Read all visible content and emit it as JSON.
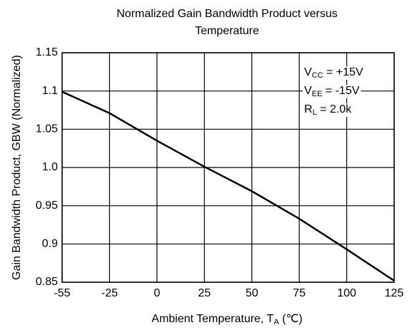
{
  "chart_data": {
    "type": "line",
    "title": [
      "Normalized Gain Bandwidth Product versus",
      "Temperature"
    ],
    "x_label": {
      "main": "Ambient Temperature, T",
      "sub": "A",
      "tail": " (℃)"
    },
    "y_label": "Gain Bandwidth Product, GBW (Normalized)",
    "x": [
      -55,
      -25,
      0,
      25,
      50,
      75,
      100,
      125
    ],
    "series": [
      {
        "color": "#000000",
        "values": [
          1.099,
          1.071,
          1.035,
          1.001,
          0.969,
          0.933,
          0.893,
          0.852
        ]
      }
    ],
    "xlim": [
      -55,
      125
    ],
    "xticks": [
      -55,
      -25,
      0,
      25,
      50,
      75,
      100,
      125
    ],
    "ylim": [
      0.85,
      1.15
    ],
    "yticks": [
      1.15,
      1.1,
      1.05,
      {
        "value": 1,
        "label": "1.0"
      },
      0.95,
      0.9,
      0.85
    ],
    "grid": true,
    "annotations": [
      {
        "main": "V",
        "sub": "CC",
        "tail": " = +15V"
      },
      {
        "main": "V",
        "sub": "EE",
        "tail": " = -15V"
      },
      {
        "main": "R",
        "sub": "L",
        "tail": " = 2.0k"
      }
    ]
  }
}
